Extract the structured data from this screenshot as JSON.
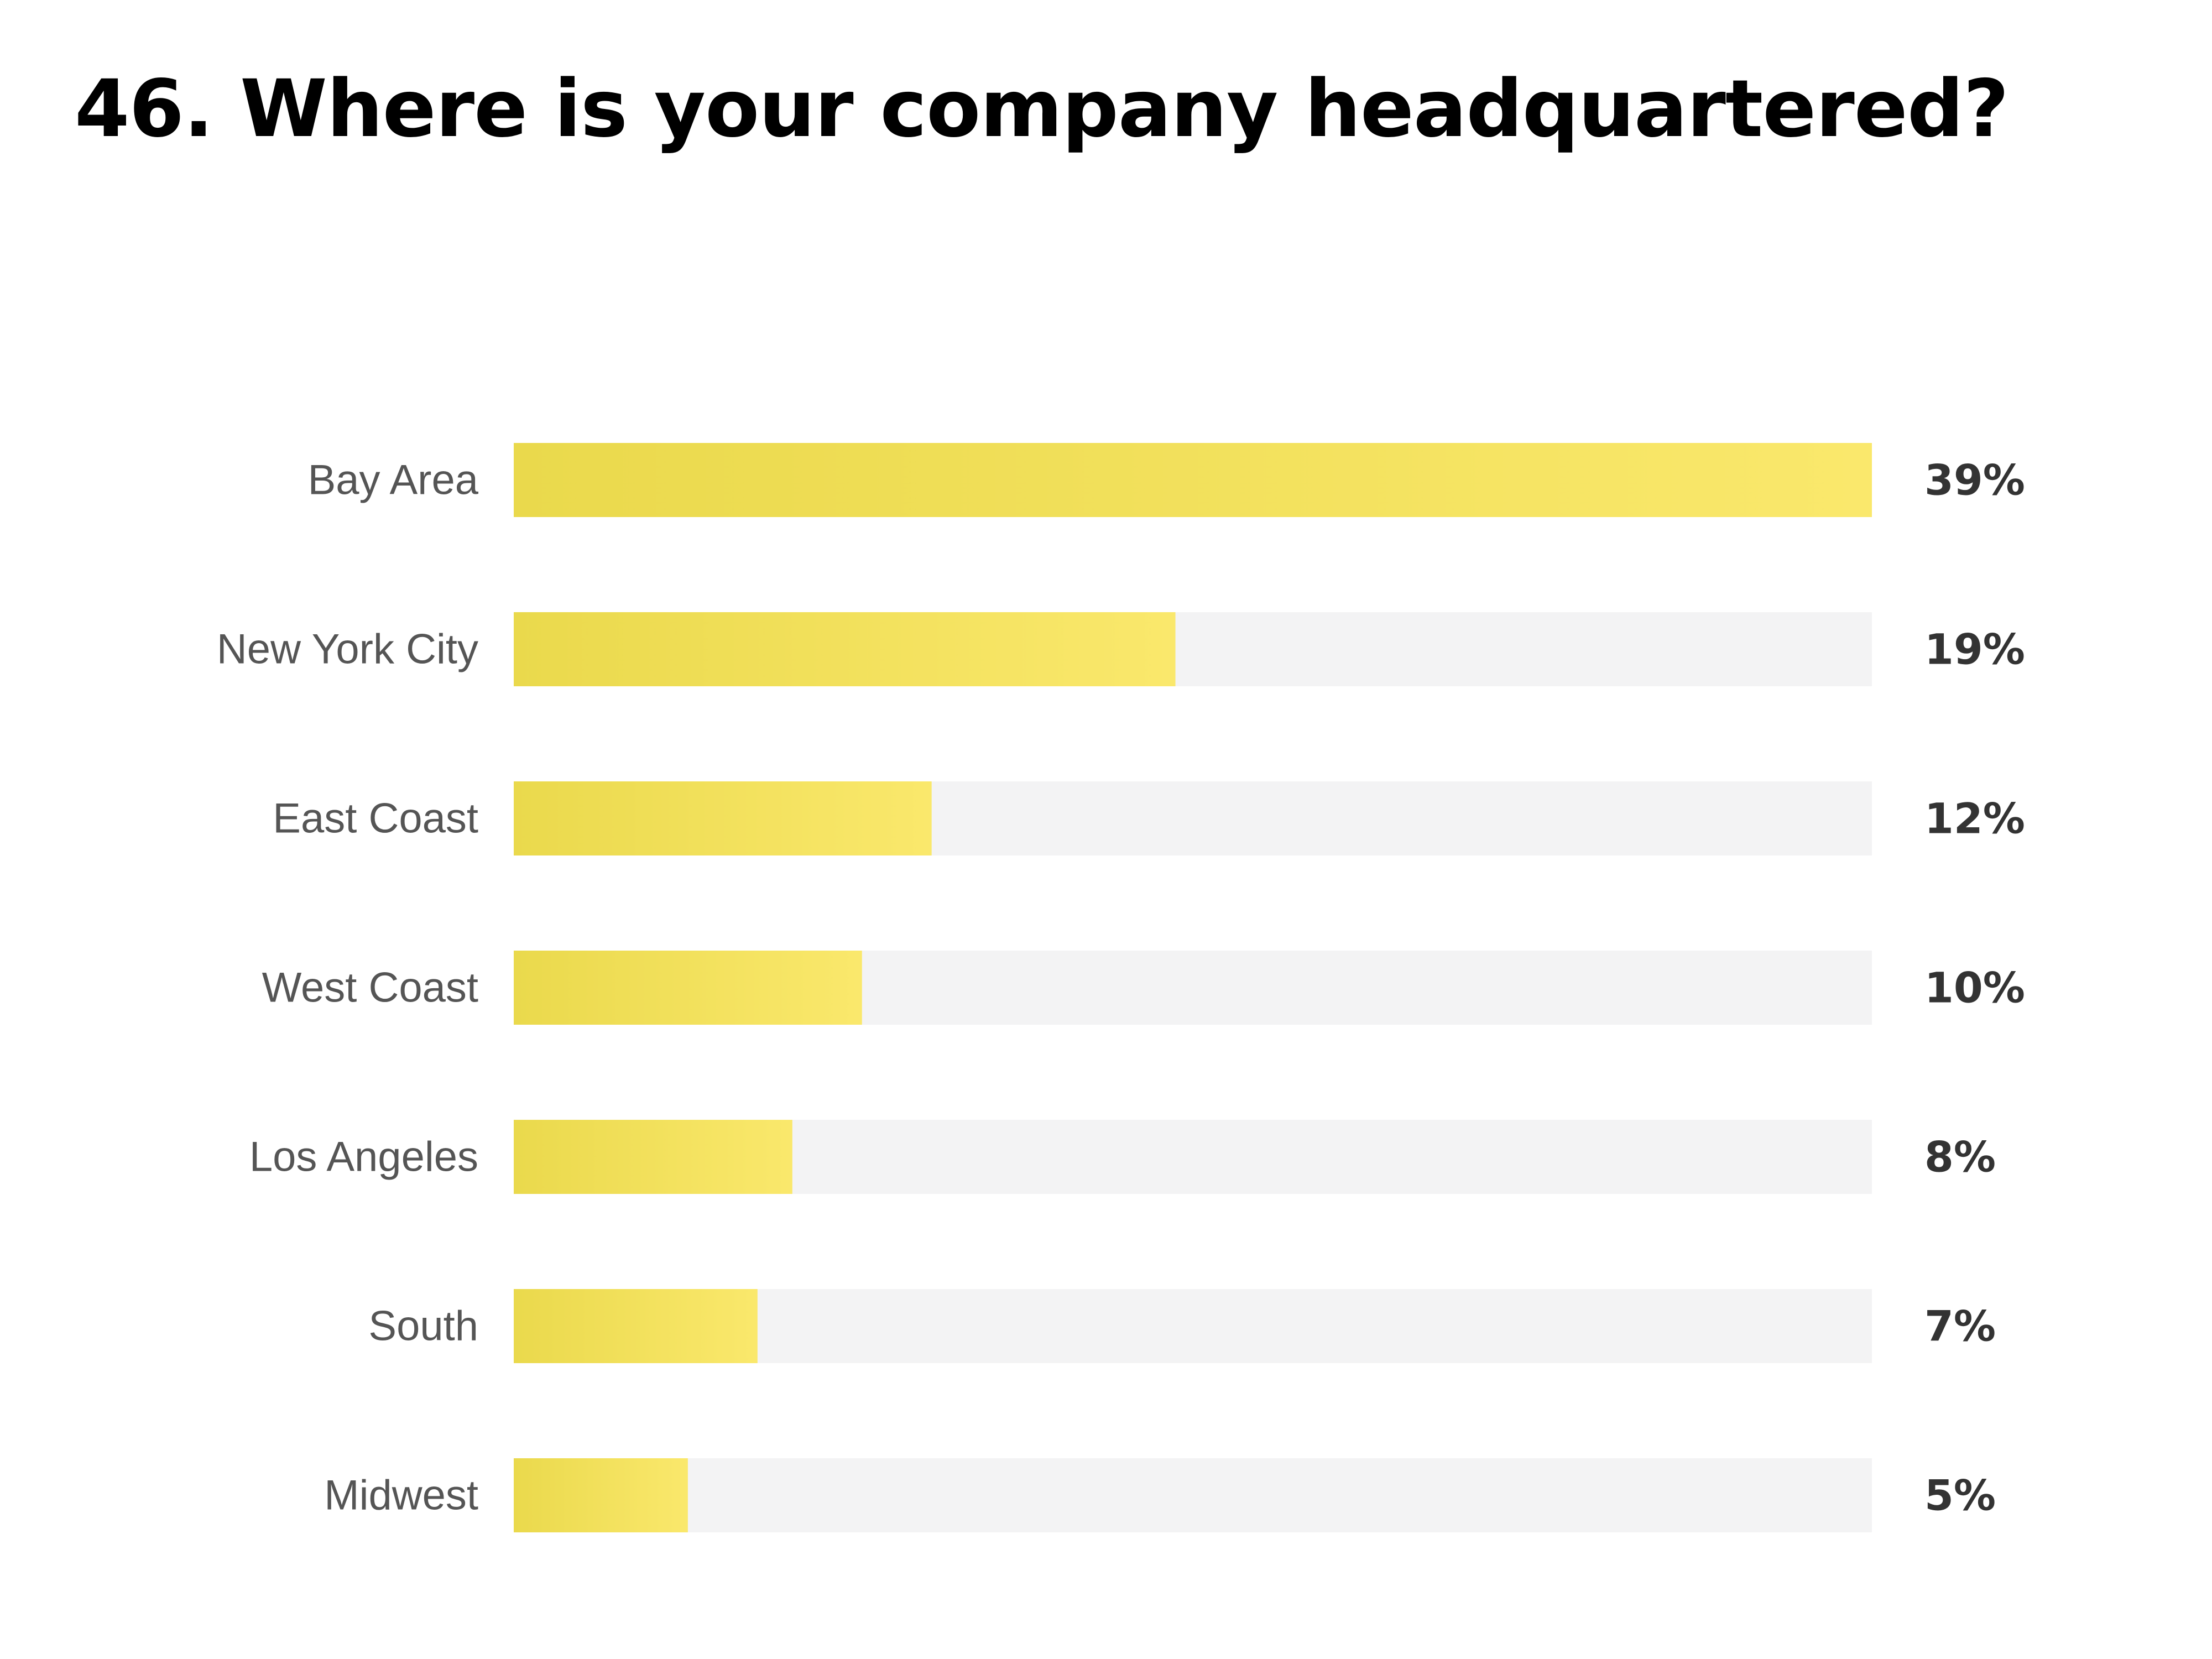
{
  "title": "46. Where is your company headquartered?",
  "colors": {
    "bar_start": "#EAD94C",
    "bar_end": "#FAE86C",
    "track": "#F3F3F4",
    "label": "#555555",
    "value": "#333333"
  },
  "chart_data": {
    "type": "bar",
    "orientation": "horizontal",
    "title": "46. Where is your company headquartered?",
    "categories": [
      "Bay Area",
      "New York City",
      "East Coast",
      "West Coast",
      "Los Angeles",
      "South",
      "Midwest"
    ],
    "values": [
      39,
      19,
      12,
      10,
      8,
      7,
      5
    ],
    "value_labels": [
      "39%",
      "19%",
      "12%",
      "10%",
      "8%",
      "7%",
      "5%"
    ],
    "unit": "%",
    "xlim": [
      0,
      39
    ],
    "grid": false,
    "legend": "none"
  }
}
